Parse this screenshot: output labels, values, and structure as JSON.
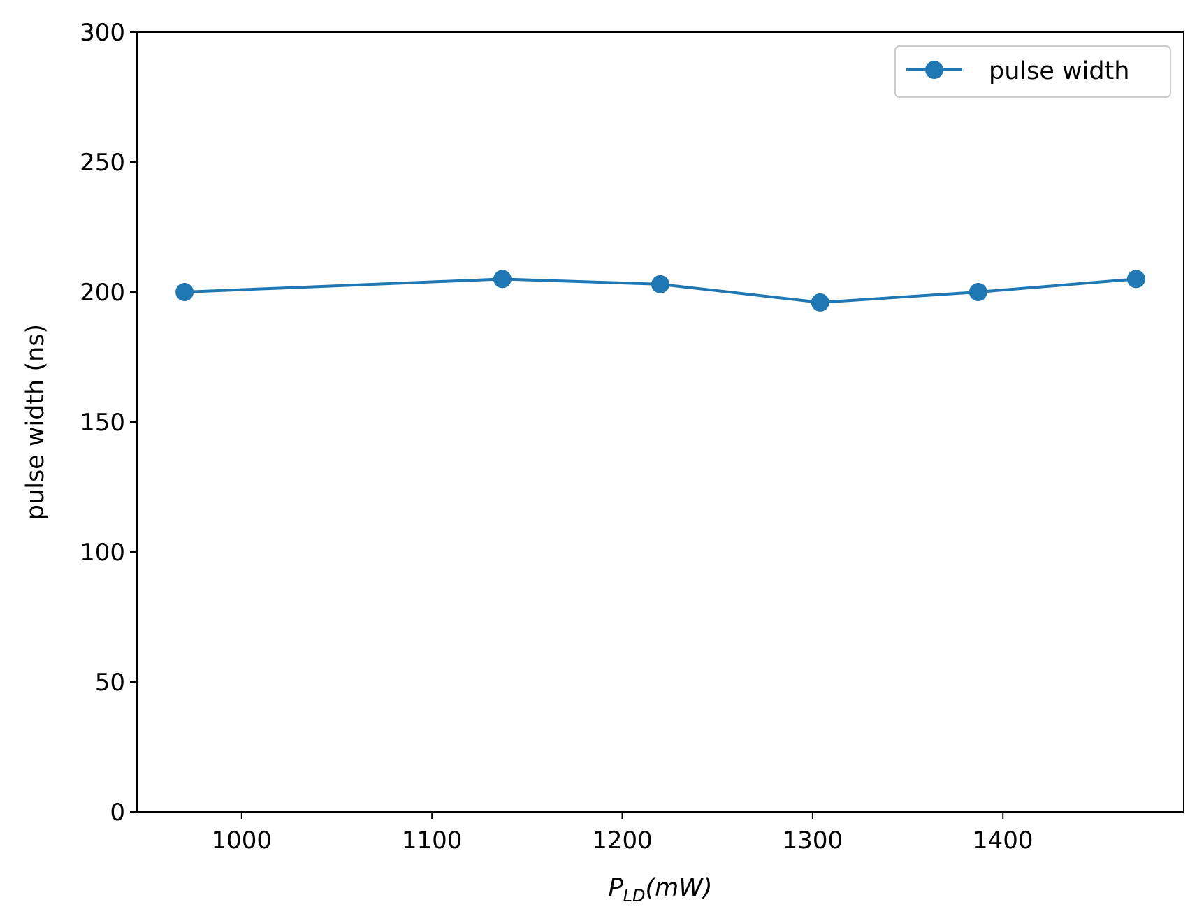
{
  "chart_data": {
    "type": "line",
    "x": [
      970,
      1137,
      1220,
      1304,
      1387,
      1470
    ],
    "series": [
      {
        "name": "pulse width",
        "values": [
          200,
          205,
          203,
          196,
          200,
          205
        ],
        "color": "#1f77b4"
      }
    ],
    "xlabel_main": "P",
    "xlabel_sub": "LD",
    "xlabel_unit": "(mW)",
    "ylabel": "pulse width (ns)",
    "xlim": [
      945,
      1495
    ],
    "ylim": [
      0,
      300
    ],
    "xticks": [
      1000,
      1100,
      1200,
      1300,
      1400
    ],
    "yticks": [
      0,
      50,
      100,
      150,
      200,
      250,
      300
    ],
    "grid": false,
    "legend_position": "top-right"
  }
}
